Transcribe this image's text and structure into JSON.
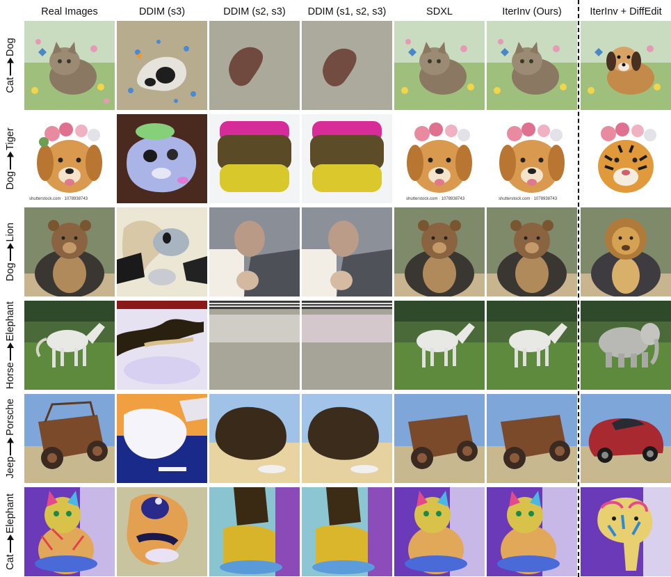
{
  "headers": [
    "Real Images",
    "DDIM (s3)",
    "DDIM (s2, s3)",
    "DDIM (s1, s2, s3)",
    "SDXL",
    "IterInv (Ours)",
    "IterInv + DiffEdit"
  ],
  "rows": [
    {
      "source": "Cat",
      "target": "Dog"
    },
    {
      "source": "Dog",
      "target": "Tiger"
    },
    {
      "source": "Dog",
      "target": "Lion"
    },
    {
      "source": "Horse",
      "target": "Elephant"
    },
    {
      "source": "Jeep",
      "target": "Porsche"
    },
    {
      "source": "Cat",
      "target": "Elephant"
    }
  ],
  "watermark": "shutterstock.com · 1078938743",
  "icons": {
    "arrow": "right-arrow-icon"
  },
  "colors": {
    "text": "#111111",
    "divider": "#111111"
  }
}
